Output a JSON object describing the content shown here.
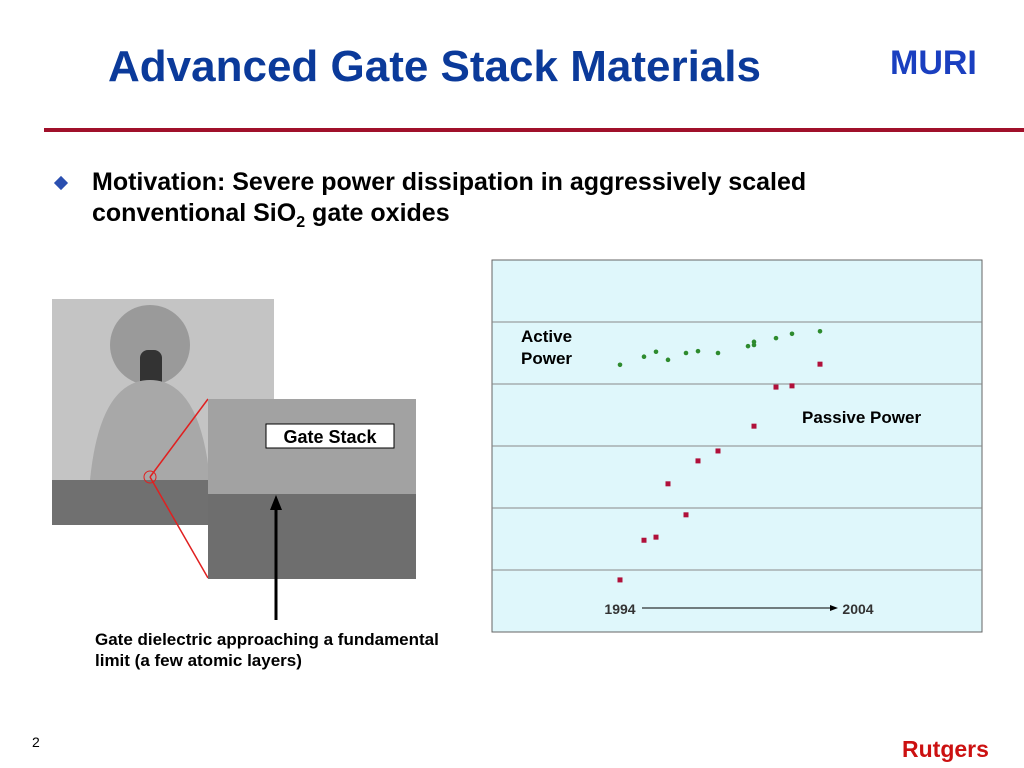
{
  "header": {
    "title": "Advanced Gate Stack Materials",
    "logo": "MURI"
  },
  "bullet": {
    "text": "Motivation:  Severe power dissipation in aggressively scaled conventional SiO",
    "subscript": "2",
    "text_after": " gate oxides"
  },
  "figure": {
    "inset_label": "Gate Stack",
    "caption": "Gate dielectric approaching a fundamental limit (a few atomic layers)"
  },
  "chart_data": {
    "type": "scatter",
    "xlim": [
      1987.6,
      2012.1
    ],
    "ylim": [
      0,
      6
    ],
    "yticks": [
      1,
      2,
      3,
      4,
      5
    ],
    "grid": true,
    "annotations": {
      "start": "1994",
      "end": "2004",
      "active_label": "Active Power",
      "passive_label": "Passive Power"
    },
    "series": [
      {
        "name": "Active Power",
        "color": "#2e8b2e",
        "x": [
          1994,
          1995.2,
          1995.8,
          1996.4,
          1997.3,
          1997.9,
          1998.9,
          2000.4,
          2000.7,
          2000.7,
          2001.8,
          2002.6,
          2004
        ],
        "values": [
          4.31,
          4.44,
          4.52,
          4.39,
          4.5,
          4.53,
          4.5,
          4.61,
          4.68,
          4.63,
          4.74,
          4.81,
          4.85
        ]
      },
      {
        "name": "Passive Power",
        "color": "#b0103a",
        "x": [
          1994,
          1995.2,
          1995.8,
          1996.4,
          1997.3,
          1997.9,
          1998.9,
          2000.7,
          2001.8,
          2002.6,
          2004
        ],
        "values": [
          0.84,
          1.48,
          1.53,
          2.39,
          1.89,
          2.76,
          2.92,
          3.32,
          3.95,
          3.97,
          4.32
        ]
      }
    ]
  },
  "footer": {
    "page": "2",
    "org": "Rutgers"
  }
}
